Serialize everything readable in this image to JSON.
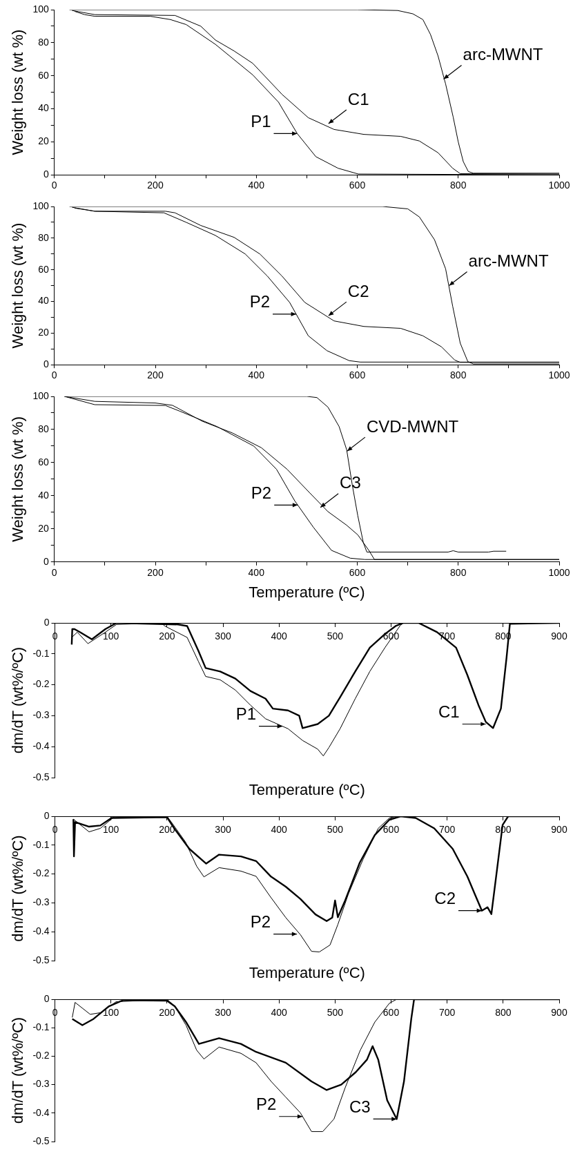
{
  "chart_data": [
    {
      "type": "line",
      "ylabel": "Weight loss (wt %)",
      "xlim": [
        0,
        1000
      ],
      "ylim": [
        0,
        100
      ],
      "xticks": [
        0,
        {
          "value": 100,
          "label": null
        },
        200,
        {
          "value": 300,
          "label": null
        },
        400,
        {
          "value": 500,
          "label": null
        },
        600,
        {
          "value": 700,
          "label": null
        },
        800,
        {
          "value": 900,
          "label": null
        },
        1000
      ],
      "yticks": [
        0,
        {
          "value": 10,
          "label": null
        },
        20,
        {
          "value": 30,
          "label": null
        },
        40,
        {
          "value": 50,
          "label": null
        },
        60,
        {
          "value": 70,
          "label": null
        },
        80,
        {
          "value": 90,
          "label": null
        },
        100
      ],
      "series": [
        {
          "color": "#000000",
          "x": [
            30,
            600,
            680,
            710,
            730,
            745,
            760,
            775,
            790,
            800,
            810,
            820,
            830,
            1000
          ],
          "values": [
            100,
            100,
            99.5,
            97.5,
            94,
            85,
            72,
            55,
            35,
            20,
            8,
            2,
            1,
            1
          ]
        },
        {
          "color": "#000000",
          "x": [
            35,
            80,
            239,
            290,
            319,
            356,
            393,
            451,
            503,
            554,
            613,
            686,
            723,
            760,
            789,
            804,
            1000
          ],
          "values": [
            99.5,
            97,
            96.5,
            90,
            81.6,
            75,
            67.5,
            48.7,
            34.6,
            27.5,
            24.5,
            23.3,
            20.5,
            13.4,
            4,
            0.7,
            0.5
          ]
        },
        {
          "color": "#000000",
          "x": [
            40,
            60,
            80,
            190,
            230,
            261,
            319,
            393,
            444,
            481,
            518,
            562,
            602,
            1000
          ],
          "values": [
            99,
            97,
            96,
            96,
            94,
            91,
            79,
            60.5,
            44,
            25,
            11,
            4,
            0.5,
            0
          ]
        }
      ],
      "annotations": [
        {
          "text": "arc-MWNT",
          "x": 771,
          "y": 58
        },
        {
          "text": "C1",
          "x": 543,
          "y": 31
        },
        {
          "text": "P1",
          "x": 481,
          "y": 25
        }
      ]
    },
    {
      "type": "line",
      "ylabel": "Weight loss (wt %)",
      "xlim": [
        0,
        1000
      ],
      "ylim": [
        0,
        100
      ],
      "xticks": [
        0,
        {
          "value": 100,
          "label": null
        },
        200,
        {
          "value": 300,
          "label": null
        },
        400,
        {
          "value": 500,
          "label": null
        },
        600,
        {
          "value": 700,
          "label": null
        },
        800,
        {
          "value": 900,
          "label": null
        },
        1000
      ],
      "yticks": [
        0,
        {
          "value": 10,
          "label": null
        },
        20,
        {
          "value": 30,
          "label": null
        },
        40,
        {
          "value": 50,
          "label": null
        },
        60,
        {
          "value": 70,
          "label": null
        },
        80,
        {
          "value": 90,
          "label": null
        },
        100
      ],
      "series": [
        {
          "color": "#000000",
          "x": [
            30,
            650,
            700,
            723,
            753,
            775,
            789,
            804,
            819,
            830,
            1000
          ],
          "values": [
            100,
            100,
            98.5,
            93.4,
            79,
            60.6,
            37,
            13.6,
            2,
            0.5,
            0.5
          ]
        },
        {
          "color": "#000000",
          "x": [
            35,
            80,
            220,
            239,
            290,
            356,
            407,
            451,
            496,
            554,
            613,
            686,
            730,
            767,
            793,
            804,
            1000
          ],
          "values": [
            99.5,
            97,
            97,
            96,
            88,
            80.5,
            70,
            56,
            39.4,
            27.7,
            24.2,
            23,
            18.3,
            11.3,
            3,
            1.5,
            1.5
          ]
        },
        {
          "color": "#000000",
          "x": [
            40,
            80,
            217,
            261,
            319,
            378,
            422,
            466,
            503,
            540,
            584,
            606,
            1000
          ],
          "values": [
            99,
            97,
            96,
            90,
            81.7,
            70,
            56,
            39.4,
            18.3,
            8.9,
            2.6,
            1.7,
            1.7
          ]
        }
      ],
      "annotations": [
        {
          "text": "arc-MWNT",
          "x": 782,
          "y": 50
        },
        {
          "text": "C2",
          "x": 543,
          "y": 31
        },
        {
          "text": "P2",
          "x": 479,
          "y": 32
        }
      ]
    },
    {
      "type": "line",
      "ylabel": "Weight loss (wt %)",
      "xlabel": "Temperature (ºC)",
      "xlim": [
        0,
        1000
      ],
      "ylim": [
        0,
        100
      ],
      "xticks": [
        0,
        {
          "value": 100,
          "label": null
        },
        200,
        {
          "value": 300,
          "label": null
        },
        400,
        {
          "value": 500,
          "label": null
        },
        600,
        {
          "value": 700,
          "label": null
        },
        800,
        {
          "value": 900,
          "label": null
        },
        1000
      ],
      "yticks": [
        0,
        {
          "value": 10,
          "label": null
        },
        20,
        {
          "value": 30,
          "label": null
        },
        40,
        {
          "value": 50,
          "label": null
        },
        60,
        {
          "value": 70,
          "label": null
        },
        80,
        {
          "value": 90,
          "label": null
        },
        100
      ],
      "series": [
        {
          "color": "#000000",
          "x": [
            20,
            500,
            520,
            542,
            564,
            579,
            590,
            601,
            612,
            619,
            780,
            790,
            800,
            860,
            870,
            895
          ],
          "values": [
            100,
            100,
            99.3,
            93.5,
            81.8,
            67.8,
            46.7,
            28,
            11.7,
            6,
            6,
            6.8,
            6,
            6,
            6.5,
            6.5
          ]
        },
        {
          "color": "#000000",
          "x": [
            20,
            80,
            200,
            234,
            293,
            352,
            410,
            461,
            505,
            542,
            579,
            601,
            623,
            634,
            1000
          ],
          "values": [
            100,
            97,
            96,
            94.6,
            85,
            78,
            69,
            56,
            42,
            30.4,
            22.2,
            16.4,
            7,
            1.5,
            1.5
          ]
        },
        {
          "color": "#000000",
          "x": [
            20,
            80,
            220,
            249,
            322,
            395,
            440,
            476,
            513,
            549,
            586,
            615,
            1000
          ],
          "values": [
            100,
            95,
            94.5,
            91,
            81.8,
            70,
            56,
            37,
            21,
            7,
            2.3,
            1.5,
            1.5
          ]
        }
      ],
      "annotations": [
        {
          "text": "CVD-MWNT",
          "x": 580,
          "y": 67
        },
        {
          "text": "C3",
          "x": 527,
          "y": 33
        },
        {
          "text": "P2",
          "x": 482,
          "y": 34.4
        }
      ]
    },
    {
      "type": "line",
      "ylabel": "dm/dT (wt%/ºC)",
      "xlabel": "Temperature (ºC)",
      "xlim": [
        0,
        900
      ],
      "ylim": [
        -0.5,
        0
      ],
      "xticks": [
        0,
        100,
        200,
        300,
        400,
        500,
        600,
        700,
        800,
        900
      ],
      "yticks": [
        -0.5,
        -0.4,
        -0.3,
        -0.2,
        -0.1,
        0
      ],
      "series": [
        {
          "color": "#000000",
          "x": [
            30,
            31,
            35,
            45,
            66,
            90,
            110,
            220,
            236,
            256,
            269,
            295,
            322,
            349,
            376,
            389,
            416,
            436,
            442,
            469,
            489,
            509,
            536,
            562,
            589,
            609,
            622,
            649,
            682,
            716,
            736,
            756,
            769,
            782,
            796,
            806,
            812,
            900
          ],
          "values": [
            -0.07,
            -0.02,
            -0.02,
            -0.03,
            -0.053,
            -0.02,
            0,
            -0.005,
            -0.01,
            -0.09,
            -0.146,
            -0.157,
            -0.18,
            -0.22,
            -0.245,
            -0.277,
            -0.283,
            -0.3,
            -0.34,
            -0.327,
            -0.3,
            -0.24,
            -0.157,
            -0.08,
            -0.036,
            -0.009,
            0,
            0,
            -0.03,
            -0.08,
            -0.168,
            -0.266,
            -0.32,
            -0.34,
            -0.277,
            -0.113,
            -0.003,
            0
          ]
        },
        {
          "color": "#000000",
          "x": [
            30,
            40,
            59,
            90,
            110,
            190,
            196,
            236,
            256,
            269,
            295,
            322,
            349,
            376,
            416,
            442,
            469,
            479,
            489,
            509,
            536,
            562,
            589,
            616,
            622,
            900
          ],
          "values": [
            -0.047,
            -0.03,
            -0.067,
            -0.03,
            -0.005,
            0,
            -0.01,
            -0.047,
            -0.124,
            -0.173,
            -0.184,
            -0.217,
            -0.266,
            -0.31,
            -0.342,
            -0.38,
            -0.408,
            -0.43,
            -0.403,
            -0.342,
            -0.245,
            -0.157,
            -0.08,
            -0.009,
            0,
            0
          ]
        }
      ],
      "annotations": [
        {
          "text": "P1",
          "x": 406,
          "y": -0.334
        },
        {
          "text": "C1",
          "x": 769,
          "y": -0.327
        }
      ]
    },
    {
      "type": "line",
      "ylabel": "dm/dT (wt%/ºC)",
      "xlabel": "Temperature (ºC)",
      "xlim": [
        0,
        900
      ],
      "ylim": [
        -0.5,
        0
      ],
      "xticks": [
        0,
        100,
        200,
        300,
        400,
        500,
        600,
        700,
        800,
        900
      ],
      "yticks": [
        -0.5,
        -0.4,
        -0.3,
        -0.2,
        -0.1,
        0
      ],
      "series": [
        {
          "color": "#000000",
          "x": [
            33,
            34,
            36,
            61,
            81,
            101,
            200,
            213,
            240,
            270,
            293,
            332,
            359,
            385,
            412,
            438,
            465,
            485,
            495,
            500,
            505,
            518,
            544,
            571,
            597,
            617,
            644,
            677,
            710,
            736,
            749,
            762,
            772,
            779,
            789,
            799,
            809,
            900
          ],
          "values": [
            -0.01,
            -0.139,
            -0.02,
            -0.036,
            -0.032,
            -0.006,
            -0.003,
            -0.042,
            -0.113,
            -0.164,
            -0.133,
            -0.139,
            -0.155,
            -0.208,
            -0.244,
            -0.286,
            -0.34,
            -0.363,
            -0.351,
            -0.292,
            -0.35,
            -0.292,
            -0.161,
            -0.065,
            -0.012,
            0,
            -0.006,
            -0.042,
            -0.113,
            -0.208,
            -0.268,
            -0.327,
            -0.315,
            -0.339,
            -0.185,
            -0.03,
            0,
            0
          ]
        },
        {
          "color": "#000000",
          "x": [
            33,
            61,
            81,
            107,
            200,
            207,
            233,
            253,
            266,
            293,
            332,
            359,
            385,
            412,
            438,
            458,
            472,
            491,
            505,
            524,
            550,
            577,
            597,
            610,
            900
          ],
          "values": [
            -0.01,
            -0.054,
            -0.042,
            0,
            0,
            -0.018,
            -0.089,
            -0.173,
            -0.21,
            -0.178,
            -0.19,
            -0.208,
            -0.28,
            -0.351,
            -0.41,
            -0.468,
            -0.47,
            -0.446,
            -0.375,
            -0.268,
            -0.149,
            -0.042,
            -0.006,
            0,
            0
          ]
        }
      ],
      "annotations": [
        {
          "text": "P2",
          "x": 432,
          "y": -0.408
        },
        {
          "text": "C2",
          "x": 762,
          "y": -0.327
        }
      ]
    },
    {
      "type": "line",
      "ylabel": "dm/dT (wt%/ºC)",
      "xlim": [
        0,
        900
      ],
      "ylim": [
        -0.5,
        0
      ],
      "xticks": [
        0,
        100,
        200,
        300,
        400,
        500,
        600,
        700,
        800,
        900
      ],
      "yticks": [
        -0.5,
        -0.4,
        -0.3,
        -0.2,
        -0.1,
        0
      ],
      "series": [
        {
          "color": "#000000",
          "x": [
            31,
            49,
            69,
            96,
            122,
            200,
            214,
            234,
            257,
            293,
            332,
            359,
            412,
            458,
            485,
            511,
            537,
            557,
            567,
            577,
            593,
            610,
            623,
            636,
            641,
            900
          ],
          "values": [
            -0.069,
            -0.091,
            -0.069,
            -0.025,
            -0.003,
            -0.005,
            -0.025,
            -0.08,
            -0.157,
            -0.137,
            -0.157,
            -0.185,
            -0.223,
            -0.289,
            -0.319,
            -0.3,
            -0.256,
            -0.212,
            -0.165,
            -0.212,
            -0.355,
            -0.421,
            -0.289,
            -0.069,
            0,
            0
          ]
        },
        {
          "color": "#000000",
          "x": [
            31,
            36,
            63,
            82,
            109,
            200,
            214,
            234,
            253,
            266,
            293,
            332,
            359,
            386,
            412,
            438,
            458,
            478,
            498,
            518,
            545,
            571,
            597,
            610,
            900
          ],
          "values": [
            -0.064,
            -0.011,
            -0.053,
            -0.047,
            -0.009,
            0,
            -0.025,
            -0.091,
            -0.179,
            -0.21,
            -0.168,
            -0.19,
            -0.223,
            -0.289,
            -0.344,
            -0.399,
            -0.465,
            -0.465,
            -0.421,
            -0.311,
            -0.179,
            -0.08,
            -0.014,
            0,
            0
          ]
        }
      ],
      "annotations": [
        {
          "text": "P2",
          "x": 442,
          "y": -0.412
        },
        {
          "text": "C3",
          "x": 610,
          "y": -0.421
        }
      ]
    }
  ]
}
